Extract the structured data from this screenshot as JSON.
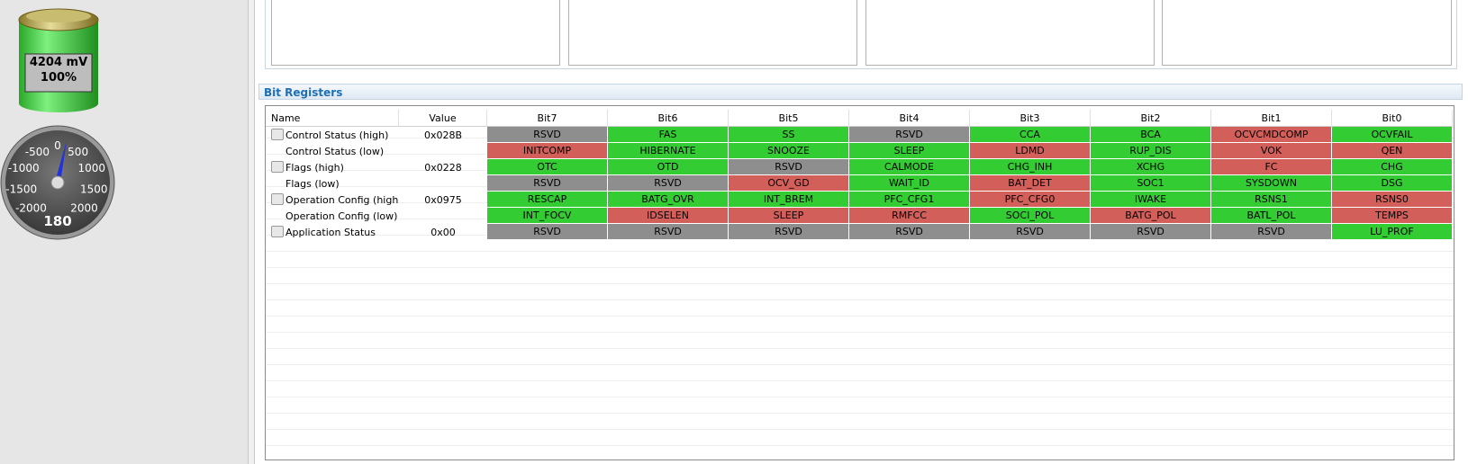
{
  "battery": {
    "voltage": "4204 mV",
    "charge": "100%"
  },
  "gauge": {
    "ticks": [
      -2000,
      -1500,
      -1000,
      -500,
      0,
      500,
      1000,
      1500,
      2000
    ],
    "value": 180
  },
  "header": {
    "title": "Bit Registers"
  },
  "table": {
    "columns": [
      "Name",
      "Value",
      "Bit7",
      "Bit6",
      "Bit5",
      "Bit4",
      "Bit3",
      "Bit2",
      "Bit1",
      "Bit0"
    ],
    "rows": [
      {
        "name": "Control Status (high)",
        "value": "0x028B",
        "bits": [
          {
            "text": "RSVD",
            "color": "#8e8e8e"
          },
          {
            "text": "FAS",
            "color": "#33cc33"
          },
          {
            "text": "SS",
            "color": "#33cc33"
          },
          {
            "text": "RSVD",
            "color": "#8e8e8e"
          },
          {
            "text": "CCA",
            "color": "#33cc33"
          },
          {
            "text": "BCA",
            "color": "#33cc33"
          },
          {
            "text": "OCVCMDCOMP",
            "color": "#d35f5a"
          },
          {
            "text": "OCVFAIL",
            "color": "#33cc33"
          }
        ]
      },
      {
        "name": "Control Status (low)",
        "value": null,
        "bits": [
          {
            "text": "INITCOMP",
            "color": "#d35f5a"
          },
          {
            "text": "HIBERNATE",
            "color": "#33cc33"
          },
          {
            "text": "SNOOZE",
            "color": "#33cc33"
          },
          {
            "text": "SLEEP",
            "color": "#33cc33"
          },
          {
            "text": "LDMD",
            "color": "#d35f5a"
          },
          {
            "text": "RUP_DIS",
            "color": "#33cc33"
          },
          {
            "text": "VOK",
            "color": "#d35f5a"
          },
          {
            "text": "QEN",
            "color": "#d35f5a"
          }
        ]
      },
      {
        "name": "Flags (high)",
        "value": "0x0228",
        "bits": [
          {
            "text": "OTC",
            "color": "#33cc33"
          },
          {
            "text": "OTD",
            "color": "#33cc33"
          },
          {
            "text": "RSVD",
            "color": "#8e8e8e"
          },
          {
            "text": "CALMODE",
            "color": "#33cc33"
          },
          {
            "text": "CHG_INH",
            "color": "#33cc33"
          },
          {
            "text": "XCHG",
            "color": "#33cc33"
          },
          {
            "text": "FC",
            "color": "#d35f5a"
          },
          {
            "text": "CHG",
            "color": "#33cc33"
          }
        ]
      },
      {
        "name": "Flags (low)",
        "value": null,
        "bits": [
          {
            "text": "RSVD",
            "color": "#8e8e8e"
          },
          {
            "text": "RSVD",
            "color": "#8e8e8e"
          },
          {
            "text": "OCV_GD",
            "color": "#d35f5a"
          },
          {
            "text": "WAIT_ID",
            "color": "#33cc33"
          },
          {
            "text": "BAT_DET",
            "color": "#d35f5a"
          },
          {
            "text": "SOC1",
            "color": "#33cc33"
          },
          {
            "text": "SYSDOWN",
            "color": "#33cc33"
          },
          {
            "text": "DSG",
            "color": "#33cc33"
          }
        ]
      },
      {
        "name": "Operation Config (high)",
        "value": "0x0975",
        "bits": [
          {
            "text": "RESCAP",
            "color": "#33cc33"
          },
          {
            "text": "BATG_OVR",
            "color": "#33cc33"
          },
          {
            "text": "INT_BREM",
            "color": "#33cc33"
          },
          {
            "text": "PFC_CFG1",
            "color": "#33cc33"
          },
          {
            "text": "PFC_CFG0",
            "color": "#d35f5a"
          },
          {
            "text": "IWAKE",
            "color": "#33cc33"
          },
          {
            "text": "RSNS1",
            "color": "#33cc33"
          },
          {
            "text": "RSNS0",
            "color": "#d35f5a"
          }
        ]
      },
      {
        "name": "Operation Config (low)",
        "value": null,
        "bits": [
          {
            "text": "INT_FOCV",
            "color": "#33cc33"
          },
          {
            "text": "IDSELEN",
            "color": "#d35f5a"
          },
          {
            "text": "SLEEP",
            "color": "#d35f5a"
          },
          {
            "text": "RMFCC",
            "color": "#d35f5a"
          },
          {
            "text": "SOCI_POL",
            "color": "#33cc33"
          },
          {
            "text": "BATG_POL",
            "color": "#d35f5a"
          },
          {
            "text": "BATL_POL",
            "color": "#33cc33"
          },
          {
            "text": "TEMPS",
            "color": "#d35f5a"
          }
        ]
      },
      {
        "name": "Application Status",
        "value": "0x00",
        "bits": [
          {
            "text": "RSVD",
            "color": "#8e8e8e"
          },
          {
            "text": "RSVD",
            "color": "#8e8e8e"
          },
          {
            "text": "RSVD",
            "color": "#8e8e8e"
          },
          {
            "text": "RSVD",
            "color": "#8e8e8e"
          },
          {
            "text": "RSVD",
            "color": "#8e8e8e"
          },
          {
            "text": "RSVD",
            "color": "#8e8e8e"
          },
          {
            "text": "RSVD",
            "color": "#8e8e8e"
          },
          {
            "text": "LU_PROF",
            "color": "#33cc33"
          }
        ]
      }
    ]
  }
}
